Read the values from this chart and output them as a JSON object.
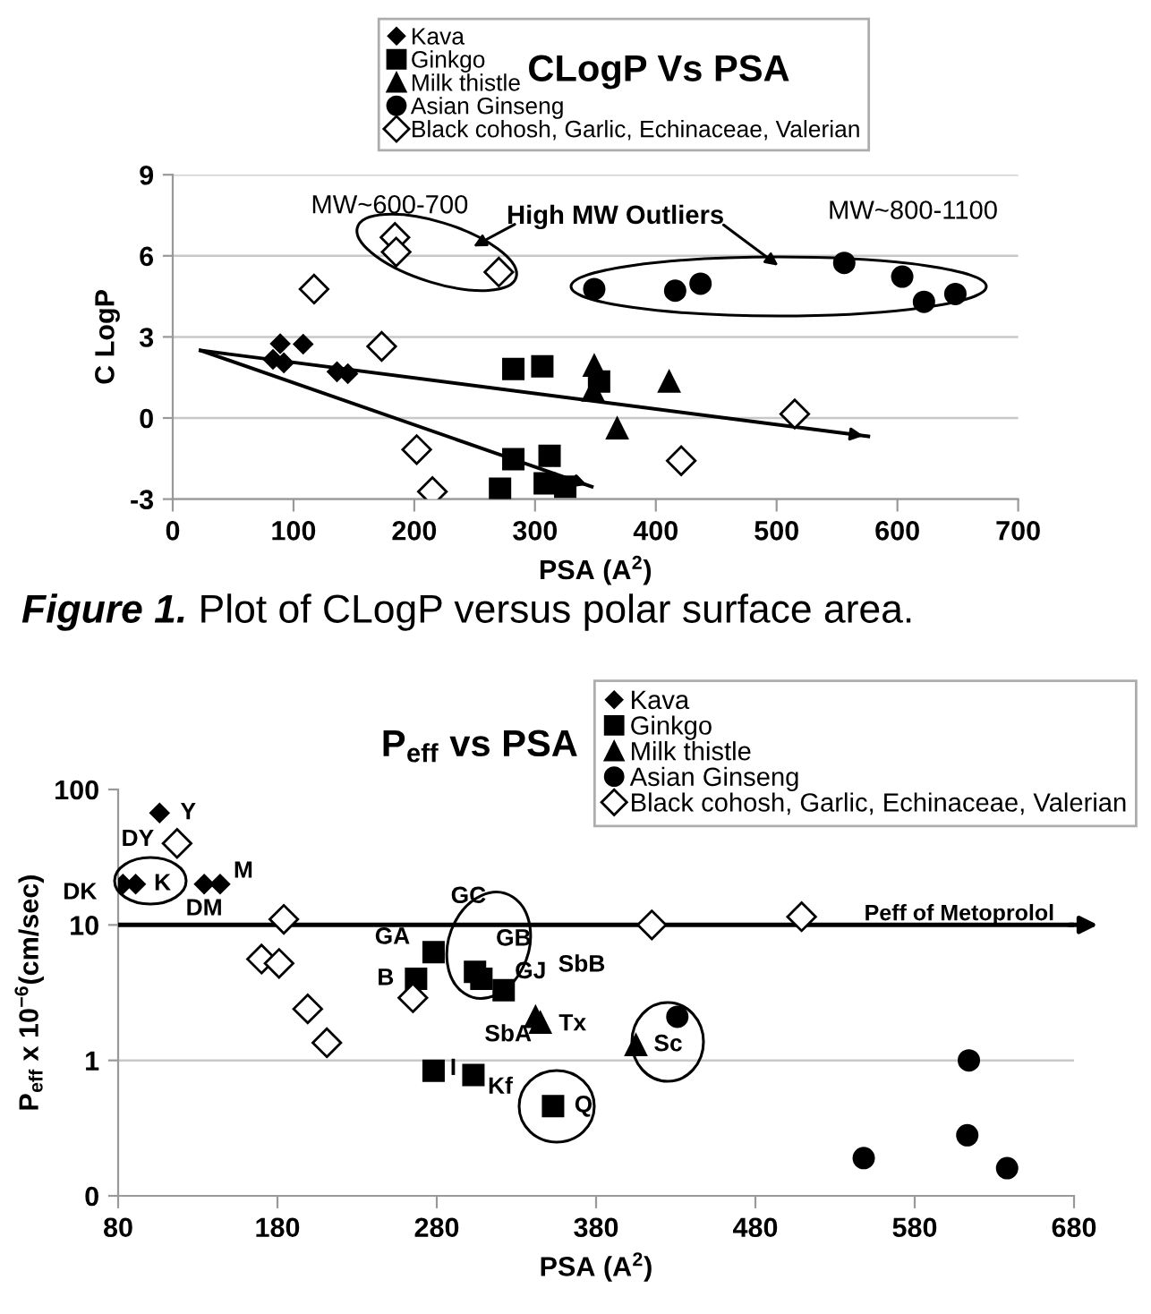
{
  "chart_data": [
    {
      "type": "scatter",
      "title": "CLogP Vs PSA",
      "xlabel": "PSA (A$^{2}$)",
      "ylabel": "C LogP",
      "xlim": [
        0,
        700
      ],
      "xticks": [
        0,
        100,
        200,
        300,
        400,
        500,
        600,
        700
      ],
      "ylim": [
        -3,
        9
      ],
      "yticks": [
        -3,
        0,
        3,
        6,
        9
      ],
      "grid": "y",
      "legend": "top",
      "series": [
        {
          "name": "Kava",
          "color": "#000000",
          "marker": "diamond",
          "x": [
            89,
            108,
            83,
            92,
            136,
            145
          ],
          "values": [
            2.75,
            2.73,
            2.17,
            2.04,
            1.71,
            1.64
          ]
        },
        {
          "name": "Ginkgo",
          "color": "#000000",
          "marker": "square",
          "x": [
            282,
            306,
            353,
            282,
            312,
            271,
            308,
            325
          ],
          "values": [
            1.81,
            1.91,
            1.35,
            -1.52,
            -1.4,
            -2.62,
            -2.42,
            -2.54
          ]
        },
        {
          "name": "Milk thistle",
          "color": "#000000",
          "marker": "triangle",
          "x": [
            349,
            348,
            411,
            368
          ],
          "values": [
            1.94,
            1.02,
            1.35,
            -0.38
          ]
        },
        {
          "name": "Asian Ginseng",
          "color": "#000000",
          "marker": "circle",
          "x": [
            349,
            416,
            437,
            556,
            604,
            622,
            648
          ],
          "values": [
            4.77,
            4.71,
            4.97,
            5.74,
            5.23,
            4.3,
            4.59
          ]
        },
        {
          "name": "Black cohosh, Garlic, Echinaceae, Valerian",
          "color": "#ffffff",
          "marker": "diamond",
          "x": [
            173,
            202,
            215,
            421,
            515,
            117,
            184,
            185,
            270
          ],
          "values": [
            2.65,
            -1.17,
            -2.72,
            -1.58,
            0.15,
            4.77,
            6.68,
            6.14,
            5.4
          ]
        },
        {
          "type": "line",
          "color": "#000000",
          "marker": "none",
          "line_style": "solid",
          "x": [
            23,
            576
          ],
          "values": [
            2.5,
            -0.68
          ]
        },
        {
          "type": "line",
          "color": "#000000",
          "marker": "none",
          "line_style": "solid",
          "x": [
            23,
            347
          ],
          "values": [
            2.5,
            -2.54
          ]
        }
      ],
      "annotations": [
        "MW~600-700",
        "High MW Outliers",
        "MW~800-1100",
        "Figure 1.",
        "Plot of CLogP versus polar surface area."
      ]
    },
    {
      "type": "scatter",
      "title": "P$_{eff}$ vs PSA",
      "xlabel": "PSA (A$^{2}$)",
      "ylabel": "P$_{eff}$ x 10$^{−6}$(cm/sec)",
      "log": true,
      "xlim": [
        80,
        680
      ],
      "xticks": [
        80,
        180,
        280,
        380,
        480,
        580,
        680
      ],
      "ylim": [
        0.1,
        100
      ],
      "yticks": [
        {
          "value": 0.1,
          "label": "0"
        },
        1,
        10,
        100
      ],
      "legend": "top right",
      "series": [
        {
          "name": "Kava",
          "color": "#000000",
          "marker": "diamond",
          "x": [
            83,
            91,
            106,
            134,
            144
          ],
          "values": [
            20,
            20,
            67,
            20,
            20
          ]
        },
        {
          "name": "Ginkgo",
          "color": "#000000",
          "marker": "square",
          "x": [
            278,
            267,
            304,
            308,
            322,
            278,
            303,
            353
          ],
          "values": [
            6.3,
            4.0,
            4.5,
            4.0,
            3.3,
            0.84,
            0.78,
            0.46
          ]
        },
        {
          "name": "Milk thistle",
          "color": "#000000",
          "marker": "triangle",
          "x": [
            342,
            345,
            405
          ],
          "values": [
            2.1,
            1.9,
            1.3
          ]
        },
        {
          "name": "Asian Ginseng",
          "color": "#000000",
          "marker": "circle",
          "x": [
            431,
            614,
            613,
            548,
            638
          ],
          "values": [
            2.1,
            1.0,
            0.28,
            0.19,
            0.16
          ]
        },
        {
          "name": "Black cohosh, Garlic, Echinaceae, Valerian",
          "color": "#ffffff",
          "marker": "diamond",
          "x": [
            117,
            184,
            170,
            181,
            199,
            211,
            265,
            415,
            509
          ],
          "values": [
            40,
            11,
            5.6,
            5.2,
            2.4,
            1.35,
            2.9,
            10,
            11.5
          ]
        }
      ],
      "ref_lines": [
        {
          "axis": "y",
          "value": 10,
          "label": "Peff of Metoprolol",
          "color": "#000000"
        },
        {
          "axis": "y",
          "value": 1,
          "color": "#c8c8c8"
        }
      ],
      "annotations": [
        {
          "text": "Y",
          "x": 106,
          "y": 67
        },
        {
          "text": "DY",
          "x": 117,
          "y": 40
        },
        {
          "text": "DK",
          "x": 83,
          "y": 20
        },
        {
          "text": "K",
          "x": 91,
          "y": 20
        },
        {
          "text": "M",
          "x": 144,
          "y": 20
        },
        {
          "text": "DM",
          "x": 134,
          "y": 20
        },
        "GC",
        {
          "text": "GA",
          "x": 278,
          "y": 6.3
        },
        {
          "text": "GB",
          "x": 308,
          "y": 4.0
        },
        {
          "text": "B",
          "x": 267,
          "y": 4.0
        },
        {
          "text": "GJ",
          "x": 322,
          "y": 3.3
        },
        "SbB",
        {
          "text": "SbA",
          "x": 345,
          "y": 1.9
        },
        {
          "text": "Tx",
          "x": 345,
          "y": 1.9
        },
        {
          "text": "Sc",
          "x": 405,
          "y": 1.3
        },
        {
          "text": "I",
          "x": 278,
          "y": 0.84
        },
        {
          "text": "Kf",
          "x": 303,
          "y": 0.78
        },
        {
          "text": "Q",
          "x": 353,
          "y": 0.46
        }
      ]
    }
  ]
}
